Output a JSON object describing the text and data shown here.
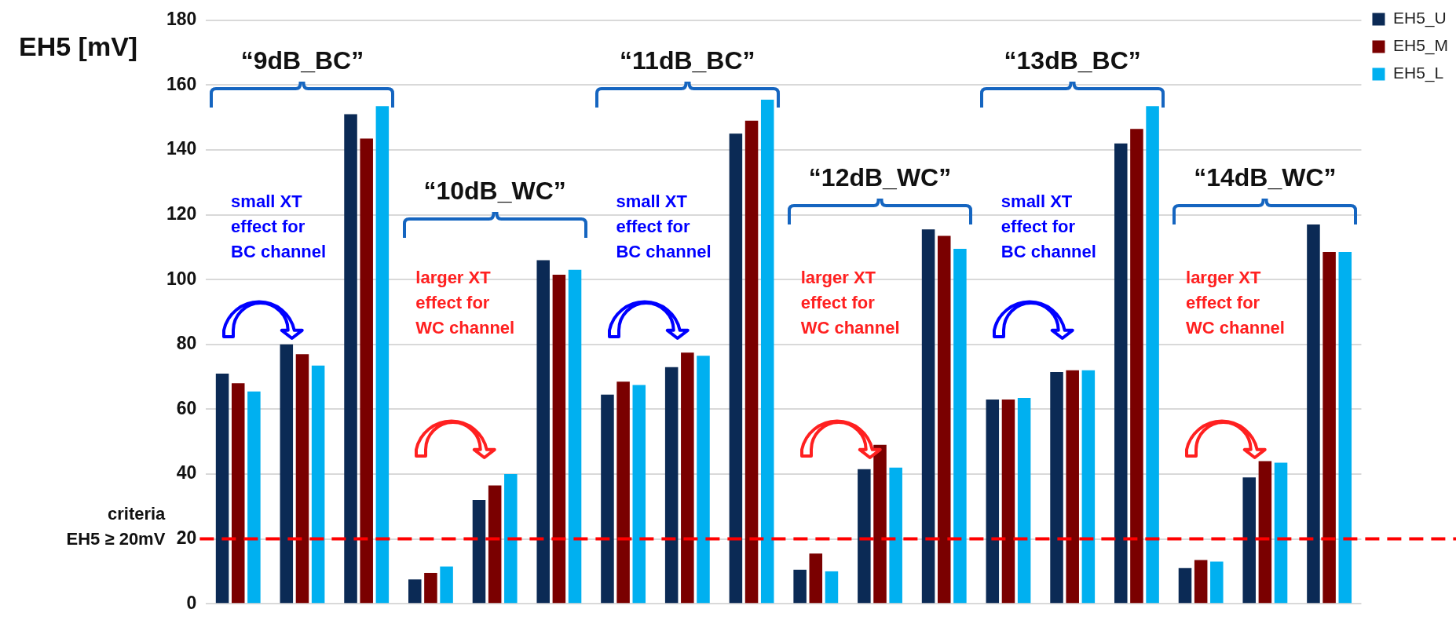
{
  "chart_data": {
    "type": "bar",
    "ylabel": "EH5 [mV]",
    "categories": [
      null,
      null,
      null,
      null,
      null,
      null,
      null,
      null,
      null,
      null,
      null,
      null,
      null,
      null,
      null,
      null,
      null,
      null
    ],
    "series": [
      {
        "name": "EH5_U",
        "color": "#0b2a55",
        "values": [
          71,
          80,
          151,
          7.5,
          32,
          106,
          64.5,
          73,
          145,
          10.5,
          41.5,
          115.5,
          63,
          71.5,
          142,
          11,
          39,
          117
        ]
      },
      {
        "name": "EH5_M",
        "color": "#7a0000",
        "values": [
          68,
          77,
          143.5,
          9.5,
          36.5,
          101.5,
          68.5,
          77.5,
          149,
          15.5,
          49,
          113.5,
          63,
          72,
          146.5,
          13.5,
          44,
          108.5
        ]
      },
      {
        "name": "EH5_L",
        "color": "#00b0f0",
        "values": [
          65.5,
          73.5,
          153.5,
          11.5,
          40,
          103,
          67.5,
          76.5,
          155.5,
          10,
          42,
          109.5,
          63.5,
          72,
          153.5,
          13,
          43.5,
          108.5
        ]
      }
    ],
    "ylim": [
      0,
      180
    ],
    "yticks": [
      0,
      20,
      40,
      60,
      80,
      100,
      120,
      140,
      160,
      180
    ],
    "grid": "y",
    "legend": "top right",
    "ref_lines": [
      {
        "axis": "y",
        "value": 20,
        "label": "criteria\nEH5 ≥ 20mV",
        "color": "#ff0000",
        "line_style": "dashed"
      }
    ],
    "annotations": [
      "“9dB_BC”",
      "“10dB_WC”",
      "“11dB_BC”",
      "“12dB_WC”",
      "“13dB_BC”",
      "“14dB_WC”",
      "small XT\neffect for\nBC channel",
      "larger XT\neffect for\nWC channel",
      "small XT\neffect for\nBC channel",
      "larger XT\neffect for\nWC channel",
      "small XT\neffect for\nBC channel",
      "larger XT\neffect for\nWC channel"
    ]
  }
}
